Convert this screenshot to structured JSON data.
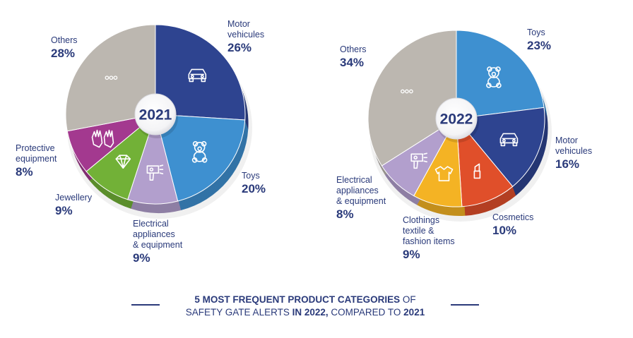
{
  "chart_data": [
    {
      "type": "pie",
      "title": "2021",
      "series": [
        {
          "name": "Motor vehicules",
          "name_lines": [
            "Motor",
            "vehicules"
          ],
          "value": 26,
          "label": "26%",
          "color": "#2e4490",
          "icon": "car-icon"
        },
        {
          "name": "Toys",
          "name_lines": [
            "Toys"
          ],
          "value": 20,
          "label": "20%",
          "color": "#3e90d0",
          "icon": "teddy-bear-icon"
        },
        {
          "name": "Electrical appliances & equipment",
          "name_lines": [
            "Electrical",
            "appliances",
            "& equipment"
          ],
          "value": 9,
          "label": "9%",
          "color": "#b29fcd",
          "icon": "hair-dryer-icon"
        },
        {
          "name": "Jewellery",
          "name_lines": [
            "Jewellery"
          ],
          "value": 9,
          "label": "9%",
          "color": "#72b137",
          "icon": "diamond-icon"
        },
        {
          "name": "Protective equipment",
          "name_lines": [
            "Protective",
            "equipment"
          ],
          "value": 8,
          "label": "8%",
          "color": "#a3398f",
          "icon": "gloves-icon"
        },
        {
          "name": "Others",
          "name_lines": [
            "Others"
          ],
          "value": 28,
          "label": "28%",
          "color": "#bcb7b0",
          "icon": "dots-icon"
        }
      ]
    },
    {
      "type": "pie",
      "title": "2022",
      "series": [
        {
          "name": "Toys",
          "name_lines": [
            "Toys"
          ],
          "value": 23,
          "label": "23%",
          "color": "#3e90d0",
          "icon": "teddy-bear-icon"
        },
        {
          "name": "Motor vehicules",
          "name_lines": [
            "Motor",
            "vehicules"
          ],
          "value": 16,
          "label": "16%",
          "color": "#2e4490",
          "icon": "car-icon"
        },
        {
          "name": "Cosmetics",
          "name_lines": [
            "Cosmetics"
          ],
          "value": 10,
          "label": "10%",
          "color": "#e04f2a",
          "icon": "lipstick-icon"
        },
        {
          "name": "Clothings textile & fashion items",
          "name_lines": [
            "Clothings",
            "textile &",
            "fashion items"
          ],
          "value": 9,
          "label": "9%",
          "color": "#f4b324",
          "icon": "shirt-icon"
        },
        {
          "name": "Electrical appliances & equipment",
          "name_lines": [
            "Electrical",
            "appliances",
            "& equipment"
          ],
          "value": 8,
          "label": "8%",
          "color": "#b29fcd",
          "icon": "hair-dryer-icon"
        },
        {
          "name": "Others",
          "name_lines": [
            "Others"
          ],
          "value": 34,
          "label": "34%",
          "color": "#bcb7b0",
          "icon": "dots-icon"
        }
      ]
    }
  ],
  "caption": {
    "line1_bold": "5 MOST FREQUENT PRODUCT CATEGORIES",
    "line1_regular": " OF",
    "line2_regular_a": "SAFETY GATE ALERTS ",
    "line2_bold_a": "IN 2022,",
    "line2_regular_b": " COMPARED TO ",
    "line2_bold_b": "2021"
  },
  "colors": {
    "text": "#2a3a7a",
    "shadow": "#d4d4d8",
    "hub": "#ffffff"
  }
}
